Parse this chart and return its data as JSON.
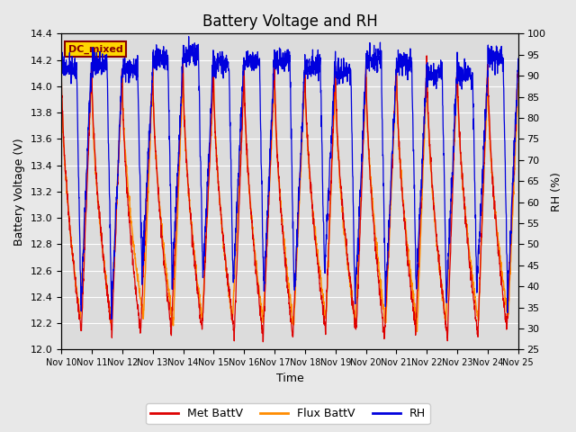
{
  "title": "Battery Voltage and RH",
  "xlabel": "Time",
  "ylabel_left": "Battery Voltage (V)",
  "ylabel_right": "RH (%)",
  "annotation": "DC_mixed",
  "ylim_left": [
    12.0,
    14.4
  ],
  "ylim_right": [
    25,
    100
  ],
  "yticks_left": [
    12.0,
    12.2,
    12.4,
    12.6,
    12.8,
    13.0,
    13.2,
    13.4,
    13.6,
    13.8,
    14.0,
    14.2,
    14.4
  ],
  "yticks_right": [
    25,
    30,
    35,
    40,
    45,
    50,
    55,
    60,
    65,
    70,
    75,
    80,
    85,
    90,
    95,
    100
  ],
  "xtick_labels": [
    "Nov 10",
    "Nov 11",
    "Nov 12",
    "Nov 13",
    "Nov 14",
    "Nov 15",
    "Nov 16",
    "Nov 17",
    "Nov 18",
    "Nov 19",
    "Nov 20",
    "Nov 21",
    "Nov 22",
    "Nov 23",
    "Nov 24",
    "Nov 25"
  ],
  "legend_labels": [
    "Met BattV",
    "Flux BattV",
    "RH"
  ],
  "line_colors": [
    "#DD0000",
    "#FF8C00",
    "#0000DD"
  ],
  "background_color": "#E8E8E8",
  "plot_bg_color": "#DCDCDC",
  "title_fontsize": 12,
  "label_fontsize": 9,
  "tick_fontsize": 8,
  "annotation_color": "#880000",
  "annotation_bg": "#FFD700",
  "n_days": 15,
  "n_points_per_day": 144
}
